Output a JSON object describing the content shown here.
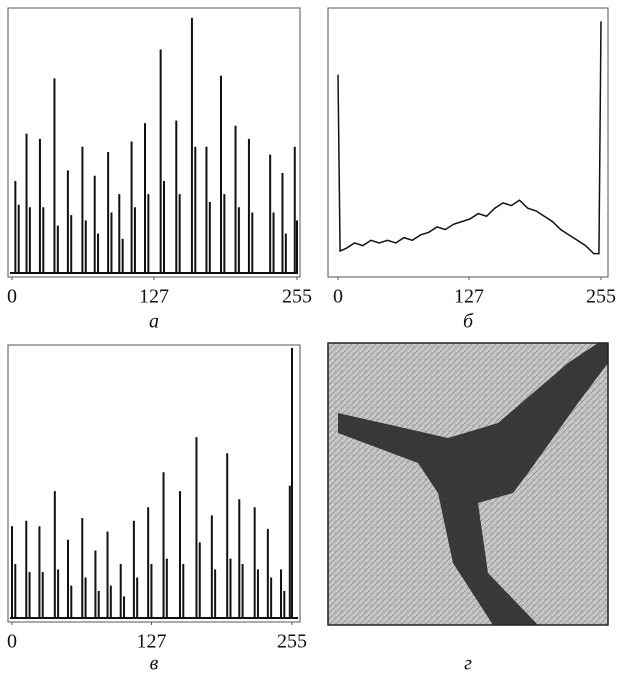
{
  "chart_data": [
    {
      "type": "bar",
      "caption": "а",
      "color": "#111111",
      "x": [
        3,
        6,
        13,
        16,
        25,
        28,
        38,
        41,
        50,
        53,
        63,
        66,
        74,
        77,
        86,
        89,
        96,
        99,
        107,
        110,
        119,
        122,
        133,
        136,
        147,
        150,
        161,
        164,
        174,
        177,
        187,
        190,
        200,
        203,
        212,
        215,
        231,
        234,
        242,
        245,
        253,
        255
      ],
      "values": [
        35,
        26,
        53,
        25,
        51,
        25,
        74,
        18,
        39,
        22,
        48,
        20,
        37,
        15,
        46,
        23,
        30,
        13,
        50,
        25,
        57,
        30,
        85,
        35,
        58,
        30,
        97,
        48,
        48,
        27,
        75,
        30,
        56,
        25,
        51,
        23,
        45,
        23,
        38,
        15,
        48,
        20
      ],
      "xlim": [
        0,
        255
      ],
      "ylim": [
        0,
        100
      ],
      "xticks": [
        0,
        127,
        255
      ]
    },
    {
      "type": "line",
      "caption": "б",
      "color": "#111111",
      "x": [
        0,
        2,
        8,
        16,
        24,
        32,
        40,
        48,
        56,
        64,
        72,
        80,
        88,
        96,
        104,
        112,
        120,
        128,
        136,
        144,
        152,
        160,
        168,
        176,
        184,
        192,
        200,
        208,
        216,
        224,
        232,
        240,
        248,
        253,
        255
      ],
      "values": [
        75,
        9,
        10,
        12,
        11,
        13,
        12,
        13,
        12,
        14,
        13,
        15,
        16,
        18,
        17,
        19,
        20,
        21,
        23,
        22,
        25,
        27,
        26,
        28,
        25,
        24,
        22,
        20,
        17,
        15,
        13,
        11,
        8,
        8,
        95
      ],
      "xlim": [
        0,
        255
      ],
      "ylim": [
        0,
        100
      ],
      "xticks": [
        0,
        127,
        255
      ]
    },
    {
      "type": "bar",
      "caption": "в",
      "color": "#111111",
      "x": [
        0,
        3,
        13,
        16,
        25,
        28,
        39,
        42,
        51,
        54,
        64,
        67,
        76,
        79,
        87,
        90,
        99,
        102,
        111,
        114,
        124,
        127,
        138,
        141,
        153,
        156,
        168,
        171,
        182,
        185,
        196,
        199,
        207,
        210,
        221,
        224,
        233,
        236,
        245,
        248,
        253,
        255
      ],
      "values": [
        34,
        20,
        36,
        17,
        34,
        17,
        47,
        18,
        29,
        12,
        37,
        15,
        25,
        10,
        32,
        12,
        20,
        8,
        36,
        15,
        41,
        20,
        54,
        22,
        47,
        20,
        67,
        28,
        38,
        18,
        61,
        22,
        44,
        20,
        41,
        18,
        33,
        15,
        18,
        10,
        49,
        100
      ],
      "xlim": [
        0,
        255
      ],
      "ylim": [
        0,
        100
      ],
      "xticks": [
        0,
        127,
        255
      ]
    },
    {
      "type": "image",
      "caption": "г"
    }
  ]
}
